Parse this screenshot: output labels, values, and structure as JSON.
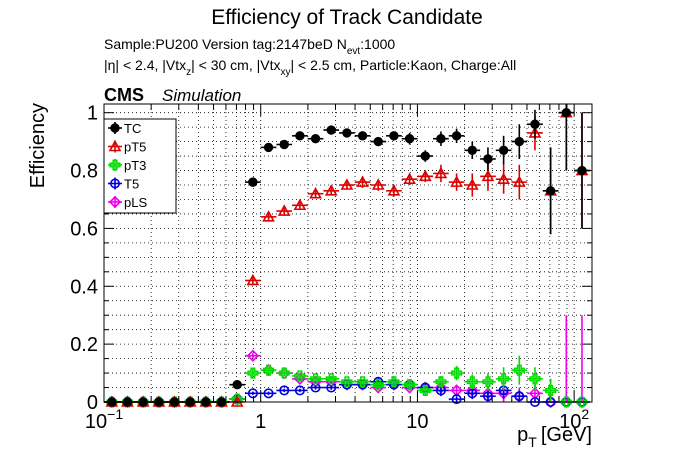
{
  "chart_data": {
    "type": "scatter",
    "title": "Efficiency of Track Candidate",
    "subtitle_sample": "Sample:PU200   Version tag:2147beD  N",
    "subtitle_nevt_sub": "evt",
    "subtitle_nevt_val": ":1000",
    "cuts_parts": [
      "|η| < 2.4, |Vtx",
      "z",
      "| < 30 cm, |Vtx",
      "xy",
      "| < 2.5 cm, Particle:Kaon, Charge:All"
    ],
    "cms_label": "CMS",
    "simulation_label": "Simulation",
    "ylabel": "Efficiency",
    "xlabel_main": "p",
    "xlabel_sub": "T",
    "xlabel_unit": "[GeV]",
    "x_scale": "log",
    "xlim": [
      0.1,
      130
    ],
    "ylim": [
      0,
      1.03
    ],
    "grid": true,
    "legend_position": "top-left",
    "y_ticks": [
      {
        "v": 0,
        "label": "0"
      },
      {
        "v": 0.2,
        "label": "0.2"
      },
      {
        "v": 0.4,
        "label": "0.4"
      },
      {
        "v": 0.6,
        "label": "0.6"
      },
      {
        "v": 0.8,
        "label": "0.8"
      },
      {
        "v": 1.0,
        "label": "1"
      }
    ],
    "x_ticks": [
      {
        "v": 0.1,
        "base": "10",
        "exp": "−1"
      },
      {
        "v": 1,
        "base": "1",
        "exp": ""
      },
      {
        "v": 10,
        "base": "10",
        "exp": ""
      },
      {
        "v": 100,
        "base": "10",
        "exp": "2"
      }
    ],
    "bins": [
      0.1,
      0.126,
      0.158,
      0.2,
      0.251,
      0.316,
      0.398,
      0.501,
      0.631,
      0.794,
      1.0,
      1.259,
      1.585,
      1.995,
      2.512,
      3.162,
      3.981,
      5.012,
      6.31,
      7.943,
      10.0,
      12.589,
      15.849,
      19.953,
      25.119,
      31.623,
      39.811,
      50.119,
      63.096,
      79.433,
      100.0,
      125.893
    ],
    "series": [
      {
        "name": "TC",
        "color": "#000000",
        "marker": "filled-circle",
        "values": [
          0,
          0,
          0,
          0,
          0,
          0,
          0,
          0,
          0.06,
          0.76,
          0.88,
          0.89,
          0.92,
          0.91,
          0.94,
          0.93,
          0.92,
          0.9,
          0.92,
          0.91,
          0.85,
          0.91,
          0.92,
          0.87,
          0.84,
          0.87,
          0.9,
          0.96,
          0.73,
          1.0,
          0.8
        ],
        "err": [
          0.01,
          0.01,
          0.01,
          0.01,
          0.01,
          0.01,
          0.01,
          0.01,
          0.015,
          0.01,
          0.01,
          0.01,
          0.01,
          0.01,
          0.01,
          0.01,
          0.01,
          0.015,
          0.015,
          0.02,
          0.02,
          0.025,
          0.025,
          0.03,
          0.04,
          0.05,
          0.06,
          0.05,
          0.15,
          0.2,
          0.2
        ]
      },
      {
        "name": "pT5",
        "color": "#dd0000",
        "marker": "open-triangle",
        "values": [
          0,
          0,
          0,
          0,
          0,
          0,
          0,
          0,
          0.0,
          0.42,
          0.64,
          0.66,
          0.68,
          0.72,
          0.73,
          0.75,
          0.76,
          0.75,
          0.73,
          0.77,
          0.78,
          0.79,
          0.76,
          0.75,
          0.78,
          0.77,
          0.76,
          0.93,
          0.73,
          1.0,
          0.8
        ],
        "err": [
          0,
          0,
          0,
          0,
          0,
          0,
          0,
          0,
          0.01,
          0.015,
          0.015,
          0.015,
          0.015,
          0.015,
          0.015,
          0.015,
          0.02,
          0.02,
          0.02,
          0.02,
          0.02,
          0.03,
          0.03,
          0.04,
          0.05,
          0.05,
          0.06,
          0.06,
          0.15,
          0.2,
          0.2
        ]
      },
      {
        "name": "pT3",
        "color": "#00dd00",
        "marker": "open-cross",
        "values": [
          0,
          0,
          0,
          0,
          0,
          0,
          0,
          0,
          0.01,
          0.1,
          0.11,
          0.1,
          0.09,
          0.08,
          0.08,
          0.07,
          0.07,
          0.06,
          0.07,
          0.06,
          0.04,
          0.07,
          0.1,
          0.07,
          0.07,
          0.08,
          0.11,
          0.08,
          0.04,
          0,
          0
        ],
        "err": [
          0,
          0,
          0,
          0,
          0,
          0,
          0,
          0,
          0.005,
          0.015,
          0.01,
          0.01,
          0.01,
          0.01,
          0.01,
          0.01,
          0.01,
          0.01,
          0.015,
          0.015,
          0.015,
          0.02,
          0.025,
          0.025,
          0.03,
          0.04,
          0.05,
          0.04,
          0.04,
          0,
          0
        ]
      },
      {
        "name": "T5",
        "color": "#0000dd",
        "marker": "open-circle",
        "values": [
          0,
          0,
          0,
          0,
          0,
          0,
          0,
          0,
          0.01,
          0.03,
          0.03,
          0.04,
          0.04,
          0.05,
          0.05,
          0.06,
          0.06,
          0.07,
          0.06,
          0.06,
          0.05,
          0.04,
          0.01,
          0.03,
          0.02,
          0.04,
          0.02,
          0.0,
          0.0,
          0,
          0
        ],
        "err": [
          0,
          0,
          0,
          0,
          0,
          0,
          0,
          0,
          0.005,
          0.006,
          0.006,
          0.006,
          0.006,
          0.007,
          0.008,
          0.009,
          0.01,
          0.012,
          0.014,
          0.015,
          0.017,
          0.02,
          0.01,
          0.02,
          0.02,
          0.03,
          0.02,
          0.01,
          0.01,
          0,
          0
        ]
      },
      {
        "name": "pLS",
        "color": "#ee00ee",
        "marker": "open-diamond",
        "values": [
          0,
          0,
          0,
          0,
          0,
          0,
          0,
          0,
          0.01,
          0.16,
          0.11,
          0.1,
          0.08,
          0.07,
          0.07,
          0.06,
          0.06,
          0.05,
          0.06,
          0.05,
          0.05,
          0.05,
          0.04,
          0.04,
          0.03,
          0.03,
          0.02,
          0.03,
          0.0,
          0.0,
          0.0
        ],
        "err": [
          0.02,
          0.01,
          0.01,
          0.01,
          0.01,
          0.01,
          0.01,
          0.01,
          0.005,
          0.01,
          0.01,
          0.01,
          0.01,
          0.008,
          0.008,
          0.008,
          0.01,
          0.01,
          0.01,
          0.01,
          0.012,
          0.015,
          0.02,
          0.02,
          0.02,
          0.03,
          0.03,
          0.03,
          0.08,
          0.3,
          0.3
        ]
      }
    ]
  }
}
